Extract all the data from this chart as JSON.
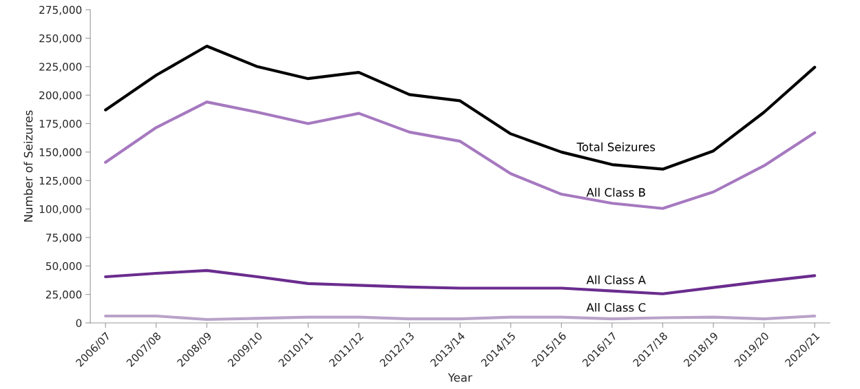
{
  "chart_data": {
    "type": "line",
    "xlabel": "Year",
    "ylabel": "Number of Seizures",
    "categories": [
      "2006/07",
      "2007/08",
      "2008/09",
      "2009/10",
      "2010/11",
      "2011/12",
      "2012/13",
      "2013/14",
      "2014/15",
      "2015/16",
      "2016/17",
      "2017/18",
      "2018/19",
      "2019/20",
      "2020/21"
    ],
    "series": [
      {
        "name": "Total Seizures",
        "color": "#000000",
        "values": [
          187000,
          217500,
          243000,
          225000,
          214500,
          220000,
          200500,
          195000,
          166000,
          150000,
          139000,
          135000,
          151000,
          185000,
          224500
        ]
      },
      {
        "name": "All Class B",
        "color": "#a679c0",
        "values": [
          141000,
          171500,
          194000,
          185000,
          175000,
          184000,
          167500,
          159500,
          131000,
          113000,
          105000,
          100500,
          115000,
          138000,
          167000
        ]
      },
      {
        "name": "All Class A",
        "color": "#6a2c8e",
        "values": [
          40500,
          43500,
          46000,
          40500,
          34500,
          33000,
          31500,
          30500,
          30500,
          30500,
          28000,
          25500,
          31000,
          36500,
          41500
        ]
      },
      {
        "name": "All Class C",
        "color": "#b9a3c9",
        "values": [
          6000,
          6000,
          3000,
          4000,
          5000,
          5000,
          3500,
          3500,
          5000,
          5000,
          3500,
          4500,
          5000,
          3500,
          6000
        ]
      }
    ],
    "ylim": [
      0,
      275000
    ],
    "yticks": [
      {
        "value": 0,
        "label": "0"
      },
      {
        "value": 25000,
        "label": "25,000"
      },
      {
        "value": 50000,
        "label": "50,000"
      },
      {
        "value": 75000,
        "label": "75,000"
      },
      {
        "value": 100000,
        "label": "100,000"
      },
      {
        "value": 125000,
        "label": "125,000"
      },
      {
        "value": 150000,
        "label": "150,000"
      },
      {
        "value": 175000,
        "label": "175,000"
      },
      {
        "value": 200000,
        "label": "200,000"
      },
      {
        "value": 225000,
        "label": "225,000"
      },
      {
        "value": 250000,
        "label": "250,000"
      },
      {
        "value": 275000,
        "label": "275,000"
      }
    ],
    "grid": false,
    "legend": false,
    "marker": "none",
    "line_style": "solid"
  }
}
